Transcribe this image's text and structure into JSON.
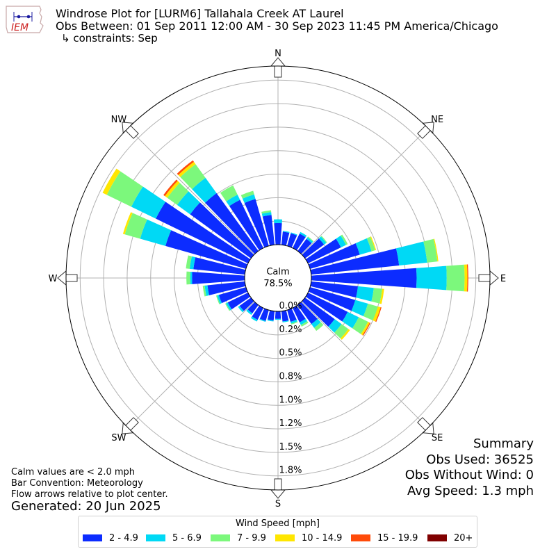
{
  "header": {
    "line1": "Windrose Plot for [LURM6] Tallahala Creek  AT Laurel",
    "line2": "Obs Between: 01 Sep 2011 12:00 AM - 30 Sep 2023 11:45 PM America/Chicago",
    "line3": "↳ constraints: Sep"
  },
  "logo": {
    "text": "IEM",
    "icon": "iem-iowa-logo-icon"
  },
  "summary": {
    "title": "Summary",
    "obs_used": "Obs Used: 36525",
    "obs_without_wind": "Obs Without Wind: 0",
    "avg_speed": "Avg Speed: 1.3 mph"
  },
  "footer": {
    "notes": [
      "Calm values are < 2.0 mph",
      "Bar Convention: Meteorology",
      "Flow arrows relative to plot center."
    ],
    "generated": "Generated: 20 Jun 2025"
  },
  "colors": {
    "2 - 4.9": "#0c2cff",
    "5 - 6.9": "#00d9f5",
    "7 - 9.9": "#7cf87c",
    "10 - 14.9": "#ffe600",
    "15 - 19.9": "#ff4b0a",
    "20+": "#800000"
  },
  "chart_data": {
    "type": "windrose",
    "calm_label": "Calm",
    "calm_value": "78.5%",
    "radial_tick_labels": [
      "0.0%",
      "0.2%",
      "0.5%",
      "0.8%",
      "1.0%",
      "1.2%",
      "1.5%",
      "1.8%"
    ],
    "radial_ticks": [
      0.0,
      0.25,
      0.5,
      0.75,
      1.0,
      1.25,
      1.5,
      1.75
    ],
    "rmax": 1.9,
    "compass_labels": [
      {
        "dir": 0,
        "label": "N"
      },
      {
        "dir": 45,
        "label": "NE"
      },
      {
        "dir": 90,
        "label": "E"
      },
      {
        "dir": 135,
        "label": "SE"
      },
      {
        "dir": 180,
        "label": "S"
      },
      {
        "dir": 225,
        "label": "SW"
      },
      {
        "dir": 270,
        "label": "W"
      },
      {
        "dir": 315,
        "label": "NW"
      }
    ],
    "legend_title": "Wind Speed [mph]",
    "bins": [
      "2 - 4.9",
      "5 - 6.9",
      "7 - 9.9",
      "10 - 14.9",
      "15 - 19.9",
      "20+"
    ],
    "direction_width_deg": 10,
    "directions": [
      {
        "dir": 0,
        "values": [
          0.23,
          0.04,
          0.0,
          0.0,
          0.0,
          0.0
        ]
      },
      {
        "dir": 10,
        "values": [
          0.14,
          0.01,
          0.0,
          0.0,
          0.0,
          0.0
        ]
      },
      {
        "dir": 20,
        "values": [
          0.14,
          0.01,
          0.0,
          0.0,
          0.0,
          0.0
        ]
      },
      {
        "dir": 30,
        "values": [
          0.17,
          0.02,
          0.0,
          0.0,
          0.0,
          0.0
        ]
      },
      {
        "dir": 40,
        "values": [
          0.16,
          0.02,
          0.01,
          0.0,
          0.0,
          0.0
        ]
      },
      {
        "dir": 50,
        "values": [
          0.25,
          0.03,
          0.01,
          0.0,
          0.0,
          0.0
        ]
      },
      {
        "dir": 60,
        "values": [
          0.39,
          0.06,
          0.02,
          0.0,
          0.0,
          0.0
        ]
      },
      {
        "dir": 70,
        "values": [
          0.55,
          0.13,
          0.04,
          0.01,
          0.0,
          0.0
        ]
      },
      {
        "dir": 80,
        "values": [
          0.94,
          0.3,
          0.11,
          0.01,
          0.0,
          0.0
        ]
      },
      {
        "dir": 90,
        "values": [
          1.12,
          0.32,
          0.19,
          0.03,
          0.01,
          0.0
        ]
      },
      {
        "dir": 100,
        "values": [
          0.5,
          0.17,
          0.09,
          0.02,
          0.0,
          0.0
        ]
      },
      {
        "dir": 110,
        "values": [
          0.5,
          0.14,
          0.11,
          0.03,
          0.01,
          0.0
        ]
      },
      {
        "dir": 120,
        "values": [
          0.47,
          0.13,
          0.11,
          0.02,
          0.01,
          0.0
        ]
      },
      {
        "dir": 130,
        "values": [
          0.39,
          0.09,
          0.09,
          0.02,
          0.0,
          0.0
        ]
      },
      {
        "dir": 140,
        "values": [
          0.25,
          0.05,
          0.04,
          0.0,
          0.0,
          0.0
        ]
      },
      {
        "dir": 150,
        "values": [
          0.17,
          0.03,
          0.02,
          0.0,
          0.0,
          0.0
        ]
      },
      {
        "dir": 160,
        "values": [
          0.13,
          0.02,
          0.01,
          0.0,
          0.0,
          0.0
        ]
      },
      {
        "dir": 170,
        "values": [
          0.11,
          0.01,
          0.0,
          0.0,
          0.0,
          0.0
        ]
      },
      {
        "dir": 180,
        "values": [
          0.08,
          0.01,
          0.0,
          0.0,
          0.0,
          0.0
        ]
      },
      {
        "dir": 190,
        "values": [
          0.1,
          0.01,
          0.0,
          0.0,
          0.0,
          0.0
        ]
      },
      {
        "dir": 200,
        "values": [
          0.12,
          0.01,
          0.0,
          0.0,
          0.0,
          0.0
        ]
      },
      {
        "dir": 210,
        "values": [
          0.14,
          0.02,
          0.0,
          0.0,
          0.0,
          0.0
        ]
      },
      {
        "dir": 220,
        "values": [
          0.11,
          0.02,
          0.0,
          0.0,
          0.0,
          0.0
        ]
      },
      {
        "dir": 230,
        "values": [
          0.15,
          0.02,
          0.0,
          0.0,
          0.0,
          0.0
        ]
      },
      {
        "dir": 240,
        "values": [
          0.24,
          0.02,
          0.01,
          0.0,
          0.0,
          0.0
        ]
      },
      {
        "dir": 250,
        "values": [
          0.3,
          0.02,
          0.01,
          0.0,
          0.0,
          0.0
        ]
      },
      {
        "dir": 260,
        "values": [
          0.4,
          0.03,
          0.02,
          0.0,
          0.0,
          0.0
        ]
      },
      {
        "dir": 270,
        "values": [
          0.56,
          0.02,
          0.04,
          0.0,
          0.0,
          0.0
        ]
      },
      {
        "dir": 280,
        "values": [
          0.55,
          0.04,
          0.04,
          0.0,
          0.0,
          0.0
        ]
      },
      {
        "dir": 290,
        "values": [
          0.89,
          0.28,
          0.17,
          0.02,
          0.0,
          0.0
        ]
      },
      {
        "dir": 300,
        "values": [
          1.09,
          0.29,
          0.29,
          0.05,
          0.0,
          0.0
        ]
      },
      {
        "dir": 310,
        "values": [
          0.8,
          0.17,
          0.13,
          0.03,
          0.02,
          0.0
        ]
      },
      {
        "dir": 320,
        "values": [
          0.76,
          0.2,
          0.18,
          0.03,
          0.02,
          0.0
        ]
      },
      {
        "dir": 330,
        "values": [
          0.57,
          0.06,
          0.11,
          0.0,
          0.0,
          0.0
        ]
      },
      {
        "dir": 340,
        "values": [
          0.52,
          0.05,
          0.04,
          0.0,
          0.0,
          0.0
        ]
      },
      {
        "dir": 350,
        "values": [
          0.32,
          0.03,
          0.02,
          0.0,
          0.0,
          0.0
        ]
      }
    ]
  }
}
